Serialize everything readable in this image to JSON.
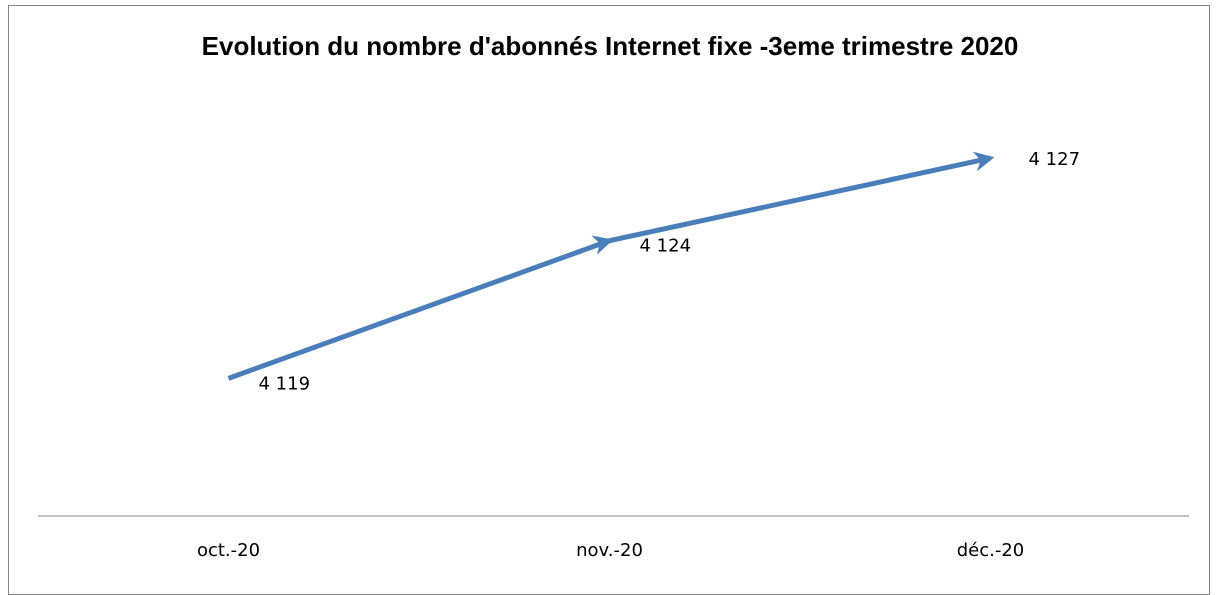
{
  "chart_data": {
    "type": "line",
    "title": "Evolution du nombre d'abonnés Internet fixe -3eme trimestre 2020",
    "categories": [
      "oct.-20",
      "nov.-20",
      "déc.-20"
    ],
    "values": [
      4119,
      4124,
      4127
    ],
    "value_labels": [
      "4 119",
      "4 124",
      "4 127"
    ],
    "color": "#4a7ebb",
    "ylim": [
      4114,
      4130
    ]
  }
}
